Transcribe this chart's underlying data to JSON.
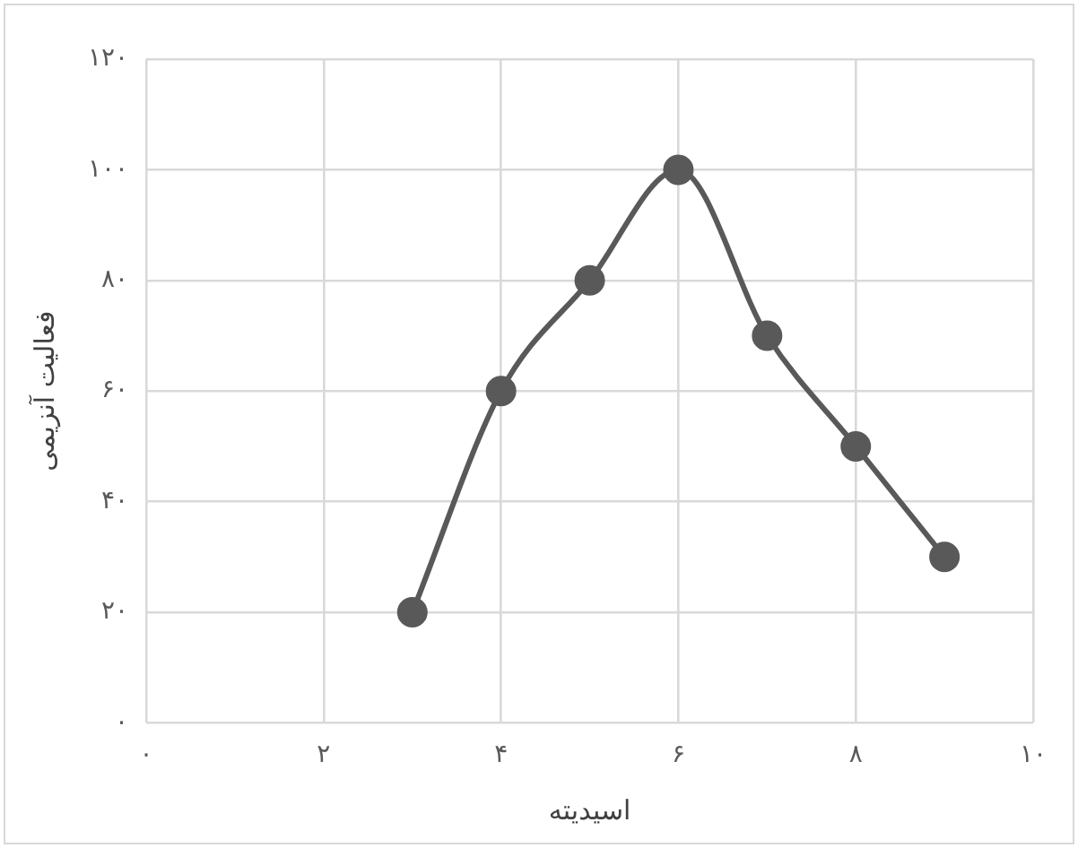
{
  "chart_data": {
    "type": "line",
    "xlabel": "اسیدیته",
    "ylabel": "فعالیت آنزیمی",
    "x": [
      3,
      4,
      5,
      6,
      7,
      8,
      9
    ],
    "series": [
      {
        "color": "#595959",
        "values": [
          20,
          60,
          80,
          100,
          70,
          50,
          30
        ]
      }
    ],
    "xlim": [
      0,
      10
    ],
    "ylim": [
      0,
      120
    ],
    "xticks": [
      {
        "value": 0,
        "label": "۰"
      },
      {
        "value": 2,
        "label": "۲"
      },
      {
        "value": 4,
        "label": "۴"
      },
      {
        "value": 6,
        "label": "۶"
      },
      {
        "value": 8,
        "label": "۸"
      },
      {
        "value": 10,
        "label": "۱۰"
      }
    ],
    "yticks": [
      {
        "value": 0,
        "label": "۰"
      },
      {
        "value": 20,
        "label": "۲۰"
      },
      {
        "value": 40,
        "label": "۴۰"
      },
      {
        "value": 60,
        "label": "۶۰"
      },
      {
        "value": 80,
        "label": "۸۰"
      },
      {
        "value": 100,
        "label": "۱۰۰"
      },
      {
        "value": 120,
        "label": "۱۲۰"
      }
    ],
    "grid": true,
    "legend": false,
    "marker": "circle",
    "line_style": "solid"
  }
}
